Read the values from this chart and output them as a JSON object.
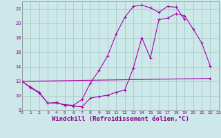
{
  "bg_color": "#cce8e8",
  "grid_color": "#aac8c8",
  "line_color": "#aa00aa",
  "xlabel": "Windchill (Refroidissement éolien,°C)",
  "xlabel_color": "#880088",
  "xlabel_fontsize": 6.5,
  "ylim": [
    8,
    23
  ],
  "xlim": [
    0,
    23
  ],
  "yticks": [
    8,
    10,
    12,
    14,
    16,
    18,
    20,
    22
  ],
  "xticks": [
    0,
    1,
    2,
    3,
    4,
    5,
    6,
    7,
    8,
    9,
    10,
    11,
    12,
    13,
    14,
    15,
    16,
    17,
    18,
    19,
    20,
    21,
    22,
    23
  ],
  "line1_x": [
    0,
    1,
    2,
    3,
    4,
    5,
    6,
    7,
    8,
    9,
    10,
    11,
    12,
    13,
    14,
    15,
    16,
    17,
    18,
    19,
    20,
    21,
    22
  ],
  "line1_y": [
    12,
    11.2,
    10.5,
    9.0,
    9.0,
    8.8,
    8.7,
    9.5,
    11.8,
    13.5,
    15.5,
    18.5,
    20.8,
    22.3,
    22.5,
    22.1,
    21.5,
    22.3,
    22.2,
    20.5,
    null,
    null,
    null
  ],
  "line2_x": [
    0,
    1,
    2,
    3,
    4,
    5,
    6,
    7,
    8,
    9,
    10,
    11,
    12,
    13,
    14,
    15,
    16,
    17,
    18,
    19,
    20,
    21,
    22
  ],
  "line2_y": [
    12,
    11.1,
    10.4,
    9.0,
    9.1,
    8.7,
    8.6,
    8.5,
    9.7,
    9.9,
    10.1,
    10.5,
    10.8,
    13.8,
    18.0,
    15.2,
    20.5,
    20.7,
    21.3,
    21.0,
    19.2,
    17.3,
    14.1
  ],
  "line3_x": [
    0,
    22
  ],
  "line3_y": [
    12,
    12.4
  ]
}
